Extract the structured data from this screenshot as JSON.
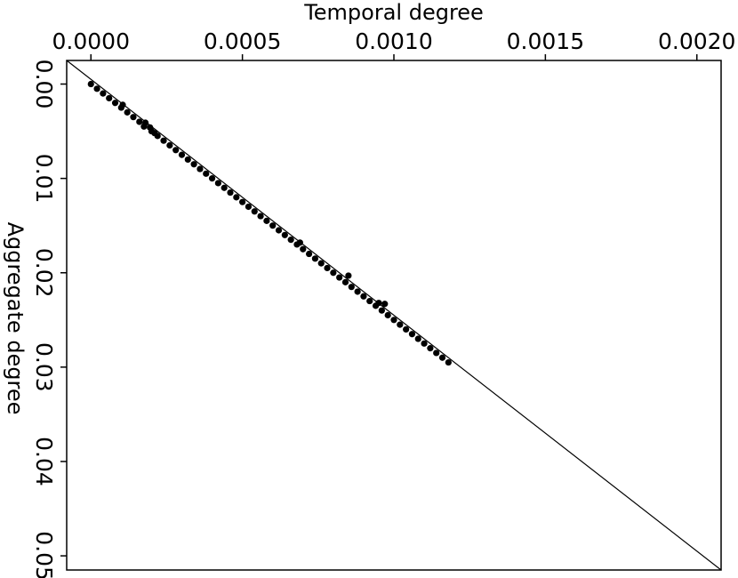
{
  "chart_data": {
    "type": "scatter",
    "title": "",
    "xlabel": "Temporal degree",
    "ylabel": "Aggregate degree",
    "xlim": [
      -8e-05,
      0.00208
    ],
    "ylim": [
      -0.0025,
      0.0515
    ],
    "x_ticks": [
      {
        "value": 0.0,
        "label": "0.0000"
      },
      {
        "value": 0.0005,
        "label": "0.0005"
      },
      {
        "value": 0.001,
        "label": "0.0010"
      },
      {
        "value": 0.0015,
        "label": "0.0015"
      },
      {
        "value": 0.002,
        "label": "0.0020"
      }
    ],
    "y_ticks": [
      {
        "value": 0.0,
        "label": "0.00"
      },
      {
        "value": 0.01,
        "label": "0.01"
      },
      {
        "value": 0.02,
        "label": "0.02"
      },
      {
        "value": 0.03,
        "label": "0.03"
      },
      {
        "value": 0.04,
        "label": "0.04"
      },
      {
        "value": 0.05,
        "label": "0.05"
      }
    ],
    "reference_line": {
      "from": [
        -8e-05,
        -0.0025
      ],
      "to": [
        0.00208,
        0.0515
      ]
    },
    "grid": false,
    "legend": "none",
    "marker_color": "#000000",
    "x": [
      0.0,
      2e-05,
      4e-05,
      6e-05,
      8e-05,
      0.0001,
      0.000105,
      0.00012,
      0.00014,
      0.00016,
      0.000175,
      0.00018,
      0.000195,
      0.0002,
      0.00021,
      0.00022,
      0.00024,
      0.00026,
      0.00028,
      0.0003,
      0.00032,
      0.00034,
      0.00036,
      0.00038,
      0.0004,
      0.00042,
      0.00044,
      0.00046,
      0.00048,
      0.0005,
      0.00052,
      0.00054,
      0.00056,
      0.00058,
      0.0006,
      0.00062,
      0.00064,
      0.00066,
      0.00068,
      0.00069,
      0.0007,
      0.00072,
      0.00074,
      0.00076,
      0.00078,
      0.0008,
      0.00082,
      0.00084,
      0.00085,
      0.00086,
      0.00088,
      0.0009,
      0.00092,
      0.00094,
      0.00095,
      0.00096,
      0.00097,
      0.00098,
      0.001,
      0.00102,
      0.00104,
      0.00106,
      0.00108,
      0.0011,
      0.00112,
      0.00114,
      0.00116,
      0.00118
    ],
    "y": [
      0.0,
      0.0005,
      0.001,
      0.0015,
      0.002,
      0.0025,
      0.0022,
      0.003,
      0.0035,
      0.004,
      0.0045,
      0.0041,
      0.0046,
      0.005,
      0.0052,
      0.0055,
      0.006,
      0.0065,
      0.007,
      0.0075,
      0.008,
      0.0085,
      0.009,
      0.0095,
      0.01,
      0.0105,
      0.011,
      0.0115,
      0.012,
      0.0125,
      0.013,
      0.0135,
      0.014,
      0.0145,
      0.015,
      0.0155,
      0.016,
      0.0165,
      0.017,
      0.0168,
      0.0175,
      0.018,
      0.0185,
      0.019,
      0.0195,
      0.02,
      0.0205,
      0.021,
      0.0203,
      0.0215,
      0.022,
      0.0225,
      0.023,
      0.0235,
      0.0232,
      0.024,
      0.0233,
      0.0245,
      0.025,
      0.0255,
      0.026,
      0.0265,
      0.027,
      0.0275,
      0.028,
      0.0285,
      0.029,
      0.0295
    ]
  }
}
